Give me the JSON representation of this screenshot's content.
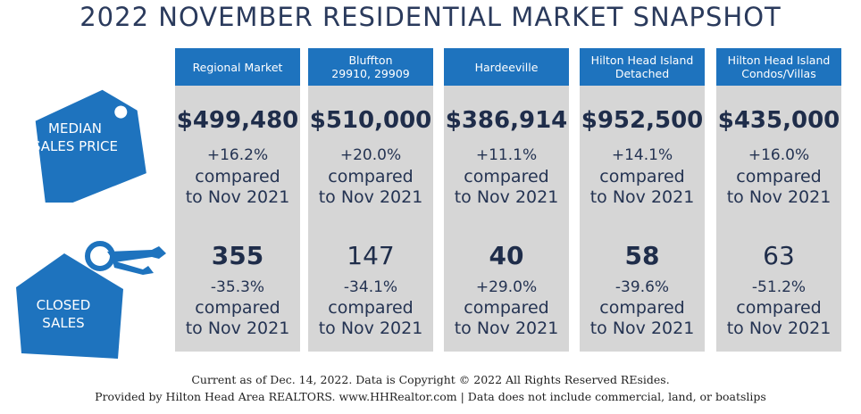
{
  "title": "2022 NOVEMBER RESIDENTIAL MARKET SNAPSHOT",
  "accent_color": "#1e73be",
  "icons": {
    "price_tag": {
      "label_line1": "MEDIAN",
      "label_line2": "SALES PRICE",
      "icon": "price-tag-icon"
    },
    "house_key": {
      "label_line1": "CLOSED",
      "label_line2": "SALES",
      "icon": "house-key-icon"
    }
  },
  "columns": [
    {
      "header_line1": "Regional Market",
      "header_line2": "",
      "price": "$499,480",
      "price_change": "+16.2%",
      "compare_line1": "compared",
      "compare_line2": "to Nov 2021",
      "sales": "355",
      "sales_change": "-35.3%",
      "sales_compare_line1": "compared",
      "sales_compare_line2": "to Nov 2021"
    },
    {
      "header_line1": "Bluffton",
      "header_line2": "29910, 29909",
      "price": "$510,000",
      "price_change": "+20.0%",
      "compare_line1": "compared",
      "compare_line2": "to Nov 2021",
      "sales": "147",
      "sales_change": "-34.1%",
      "sales_compare_line1": "compared",
      "sales_compare_line2": "to Nov 2021"
    },
    {
      "header_line1": "Hardeeville",
      "header_line2": "",
      "price": "$386,914",
      "price_change": "+11.1%",
      "compare_line1": "compared",
      "compare_line2": "to Nov 2021",
      "sales": "40",
      "sales_change": "+29.0%",
      "sales_compare_line1": "compared",
      "sales_compare_line2": "to Nov 2021"
    },
    {
      "header_line1": "Hilton Head Island",
      "header_line2": "Detached",
      "price": "$952,500",
      "price_change": "+14.1%",
      "compare_line1": "compared",
      "compare_line2": "to Nov 2021",
      "sales": "58",
      "sales_change": "-39.6%",
      "sales_compare_line1": "compared",
      "sales_compare_line2": "to Nov 2021"
    },
    {
      "header_line1": "Hilton Head Island",
      "header_line2": "Condos/Villas",
      "price": "$435,000",
      "price_change": "+16.0%",
      "compare_line1": "compared",
      "compare_line2": "to Nov 2021",
      "sales": "63",
      "sales_change": "-51.2%",
      "sales_compare_line1": "compared",
      "sales_compare_line2": "to Nov 2021"
    }
  ],
  "footer": {
    "line1": "Current as of Dec. 14, 2022. Data is Copyright © 2022  All Rights Reserved REsides.",
    "line2": "Provided by Hilton Head Area REALTORS.  www.HHRealtor.com | Data does not include commercial, land, or boatslips"
  }
}
